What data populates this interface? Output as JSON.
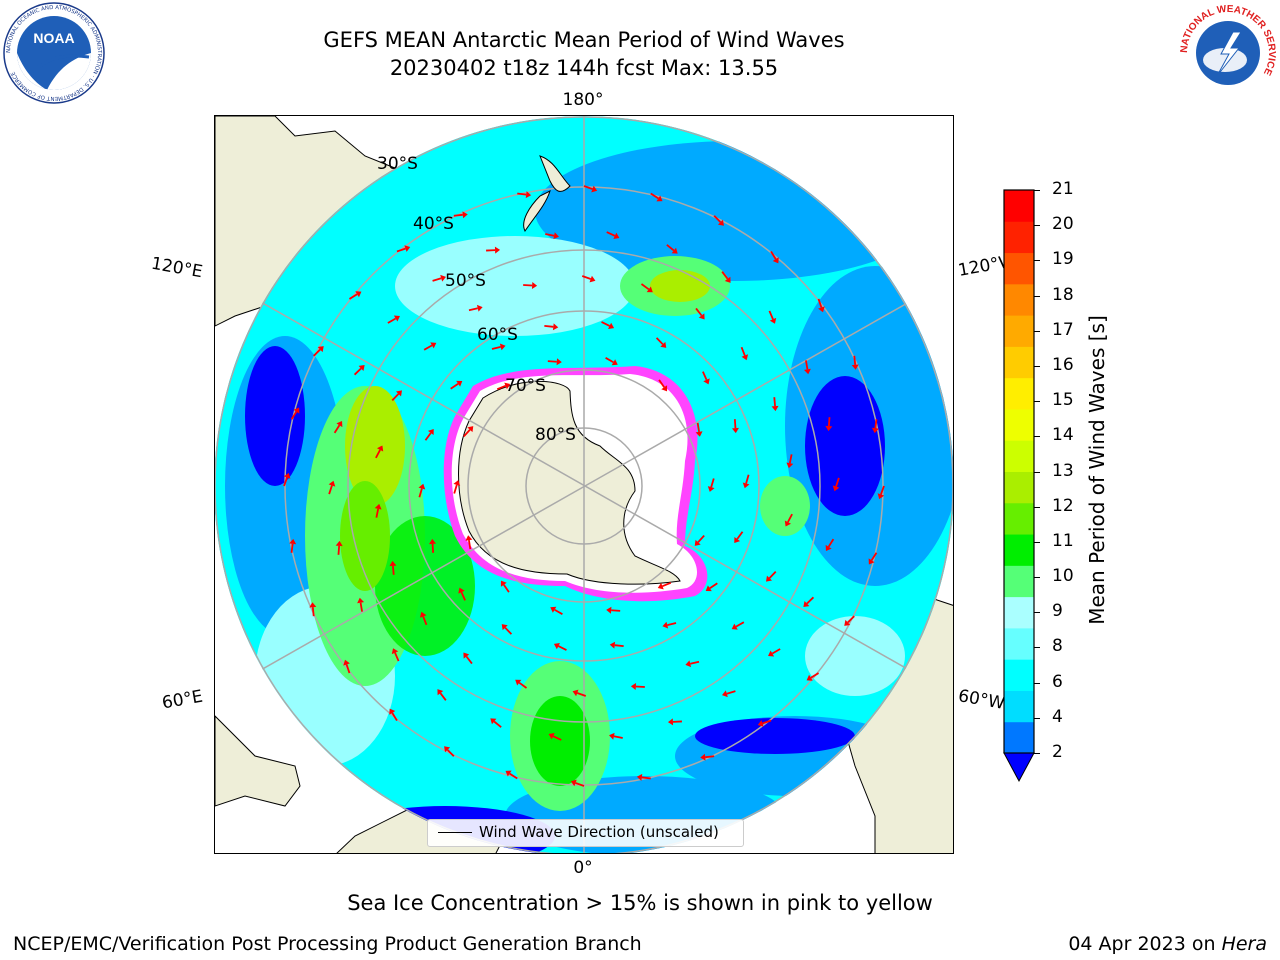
{
  "header": {
    "title_line1": "GEFS MEAN Antarctic Mean Period of Wind Waves",
    "title_line2": "20230402 t18z 144h fcst   Max: 13.55"
  },
  "logos": {
    "left": "NOAA",
    "left_ring": "NATIONAL OCEANIC AND ATMOSPHERIC ADMINISTRATION · U.S. DEPARTMENT OF COMMERCE",
    "right_ring": "NATIONAL WEATHER SERVICE"
  },
  "map": {
    "longitude_labels": {
      "top": "180°",
      "bottom": "0°",
      "left_upper": "120°E",
      "left_lower": "60°E",
      "right_upper": "120°W",
      "right_lower": "60°W"
    },
    "latitude_labels": [
      "30°S",
      "40°S",
      "50°S",
      "60°S",
      "70°S",
      "80°S"
    ],
    "legend": "Wind Wave Direction (unscaled)",
    "colors": {
      "ocean_light": "#00ffff",
      "ocean_pale": "#99ffff",
      "ocean_mid": "#00aaff",
      "ocean_dark": "#0000ff",
      "land": "#eeeed8",
      "ice_edge": "#ff44ff",
      "arrow": "#ff0000"
    }
  },
  "colorbar": {
    "label": "Mean Period of Wind Waves [s]",
    "ticks": [
      "2",
      "4",
      "6",
      "8",
      "9",
      "10",
      "11",
      "12",
      "13",
      "14",
      "15",
      "16",
      "17",
      "18",
      "19",
      "20",
      "21"
    ],
    "colors": [
      "#0078ff",
      "#00ddff",
      "#00ffff",
      "#66ffff",
      "#aaffff",
      "#55ff77",
      "#00ee00",
      "#66ee00",
      "#aaee00",
      "#ccff00",
      "#eeff00",
      "#ffee00",
      "#ffcc00",
      "#ffaa00",
      "#ff8800",
      "#ff5500",
      "#ff2200",
      "#ff0000"
    ],
    "extend_color": "#0000ff"
  },
  "footer": {
    "caption": "Sea Ice Concentration > 15% is shown in pink to yellow",
    "left": "NCEP/EMC/Verification Post Processing Product Generation Branch",
    "date": "04 Apr 2023 on ",
    "machine": "Hera"
  }
}
